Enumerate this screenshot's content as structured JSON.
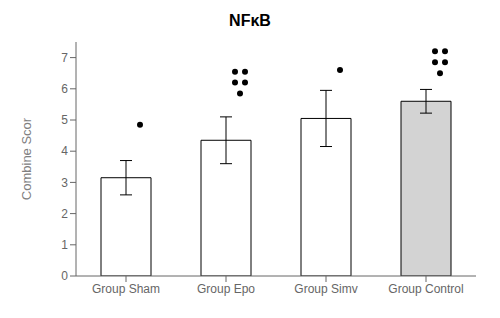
{
  "chart_data": {
    "type": "bar",
    "title": "NFκB",
    "ylabel": "Combine Scor",
    "categories": [
      "Group Sham",
      "Group Epo",
      "Group Simv",
      "Group Control"
    ],
    "values": [
      3.15,
      4.35,
      5.05,
      5.6
    ],
    "errors": [
      0.55,
      0.75,
      0.9,
      0.38
    ],
    "ylim": [
      0,
      7.5
    ],
    "yticks": [
      0,
      1,
      2,
      3,
      4,
      5,
      6,
      7
    ],
    "colors": [
      "white",
      "white",
      "white",
      "lightgray"
    ],
    "grid": false,
    "stat_dots": [
      {
        "category": "Group Sham",
        "y": 4.85
      },
      {
        "category": "Group Epo",
        "y": 6.55
      },
      {
        "category": "Group Epo",
        "y": 6.55
      },
      {
        "category": "Group Epo",
        "y": 6.2
      },
      {
        "category": "Group Epo",
        "y": 6.2
      },
      {
        "category": "Group Epo",
        "y": 5.85
      },
      {
        "category": "Group Simv",
        "y": 6.6
      },
      {
        "category": "Group Control",
        "y": 7.2
      },
      {
        "category": "Group Control",
        "y": 7.2
      },
      {
        "category": "Group Control",
        "y": 6.85
      },
      {
        "category": "Group Control",
        "y": 6.85
      },
      {
        "category": "Group Control",
        "y": 6.5
      }
    ]
  }
}
